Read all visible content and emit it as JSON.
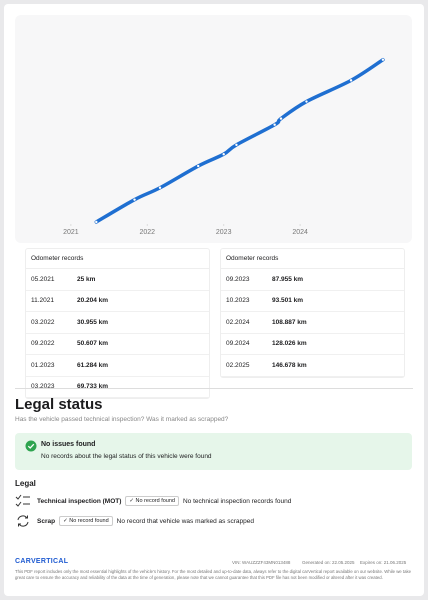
{
  "chart_data": {
    "type": "line",
    "x": [
      "05.2021",
      "11.2021",
      "03.2022",
      "09.2022",
      "01.2023",
      "03.2023",
      "09.2023",
      "10.2023",
      "02.2024",
      "09.2024",
      "02.2025"
    ],
    "series": [
      {
        "color": "#1f6fd1",
        "values": [
          25,
          20204,
          30955,
          50607,
          61284,
          69733,
          87955,
          93501,
          108887,
          128026,
          146678
        ]
      }
    ],
    "xlim": [
      2020.4,
      2025.15
    ],
    "xticks": [
      2021,
      2022,
      2023,
      2024
    ],
    "ylim": [
      0,
      160000
    ]
  },
  "records_left": {
    "title": "Odometer records",
    "rows": [
      [
        "05.2021",
        "25 km"
      ],
      [
        "11.2021",
        "20.204 km"
      ],
      [
        "03.2022",
        "30.955 km"
      ],
      [
        "09.2022",
        "50.607 km"
      ],
      [
        "01.2023",
        "61.284 km"
      ],
      [
        "03.2023",
        "69.733 km"
      ]
    ]
  },
  "records_right": {
    "title": "Odometer records",
    "rows": [
      [
        "09.2023",
        "87.955 km"
      ],
      [
        "10.2023",
        "93.501 km"
      ],
      [
        "02.2024",
        "108.887 km"
      ],
      [
        "09.2024",
        "128.026 km"
      ],
      [
        "02.2025",
        "146.678 km"
      ]
    ]
  },
  "legal": {
    "title": "Legal status",
    "subtitle": "Has the vehicle passed technical inspection? Was it marked as scrapped?",
    "notice_title": "No issues found",
    "notice_text": "No records about the legal status of this vehicle were found",
    "section": "Legal",
    "items": [
      {
        "label": "Technical inspection (MOT)",
        "badge": "No record found",
        "text": "No technical inspection records found"
      },
      {
        "label": "Scrap",
        "badge": "No record found",
        "text": "No record that vehicle was marked as scrapped"
      }
    ]
  },
  "footer": {
    "logo": "CARVERTICAL",
    "vin": "VIN: WAUZZZF43MN013488",
    "generated": "Generated on: 22.05.2025",
    "expires": "Expires on: 21.06.2025",
    "disclaimer": "This PDF report includes only the most essential highlights of the vehicle's history. For the most detailed and up-to-date data, always refer to the digital carVertical report available on our website. While we take great care to ensure the accuracy and reliability of the data at the time of generation, please note that we cannot guarantee that this PDF file has not been modified or altered after it was created."
  }
}
